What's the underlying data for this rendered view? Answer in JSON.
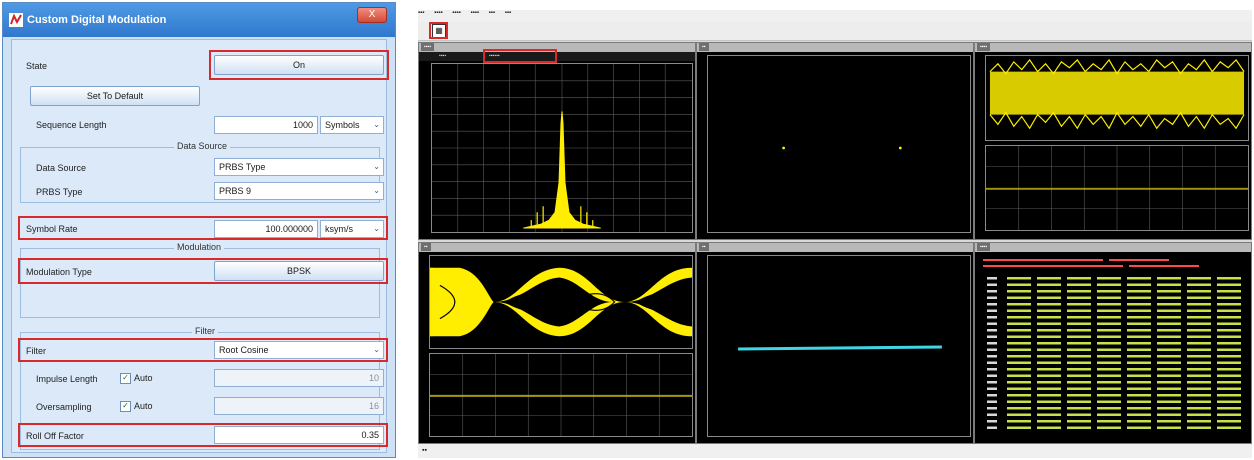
{
  "dialog": {
    "title": "Custom Digital Modulation",
    "close_label": "X",
    "state_label": "State",
    "state_button": "On",
    "set_default_button": "Set To Default",
    "sequence_length_label": "Sequence Length",
    "sequence_length_value": "1000",
    "sequence_length_unit": "Symbols",
    "data_source_section": "Data Source",
    "data_source_label": "Data Source",
    "data_source_value": "PRBS Type",
    "prbs_type_label": "PRBS Type",
    "prbs_type_value": "PRBS 9",
    "symbol_rate_label": "Symbol Rate",
    "symbol_rate_value": "100.000000",
    "symbol_rate_unit": "ksym/s",
    "modulation_section": "Modulation",
    "modulation_type_label": "Modulation Type",
    "modulation_type_value": "BPSK",
    "filter_section": "Filter",
    "filter_label": "Filter",
    "filter_value": "Root Cosine",
    "impulse_length_label": "Impulse Length",
    "impulse_auto_label": "Auto",
    "impulse_length_value": "10",
    "oversampling_label": "Oversampling",
    "oversampling_auto_label": "Auto",
    "oversampling_value": "16",
    "roll_off_label": "Roll Off Factor",
    "roll_off_value": "0.35"
  },
  "icons": {
    "app_icon": "app-logo-icon",
    "dropdown": "chevron-down-icon",
    "toolbar": "save-icon"
  },
  "colors": {
    "highlight": "#d82a2a",
    "trace_yellow": "#ffee00",
    "trace_cyan": "#3fd6e6",
    "table_red": "#ff4a4a",
    "table_green": "#c8e04a"
  }
}
